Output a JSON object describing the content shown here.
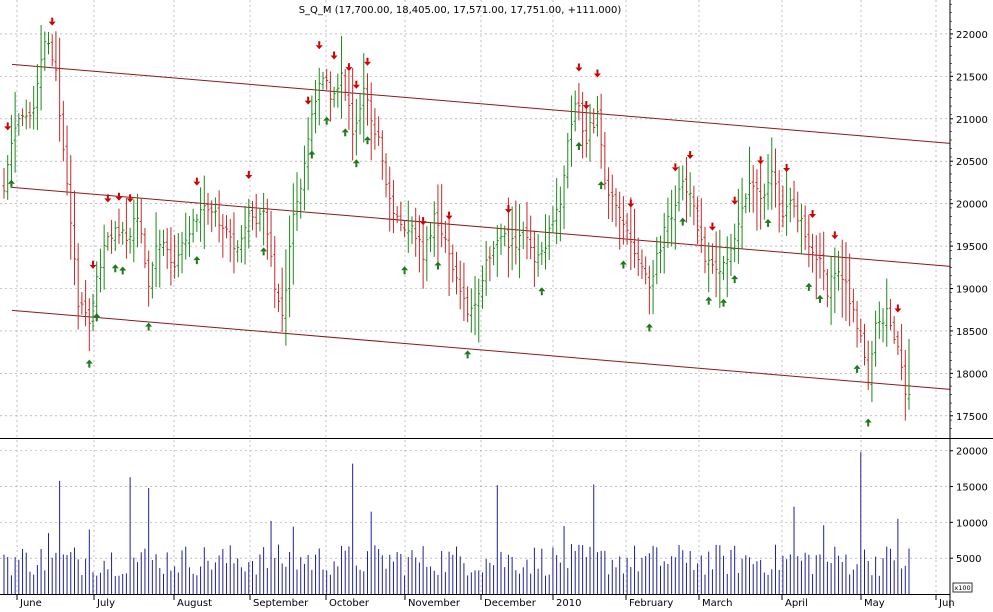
{
  "header": {
    "title": "S_Q_M (17,700.00, 18,405.00, 17,571.00, 17,751.00, +111.000)"
  },
  "volume_scale_label": "x100",
  "colors": {
    "up_bar": "#1a8a1a",
    "down_bar": "#c62828",
    "channel_line": "#8b1a1a",
    "volume_bar": "#1f1f9a",
    "grid": "#9a9a9a",
    "up_arrow": "#1a7a1a",
    "down_arrow": "#d10000"
  },
  "chart_data": [
    {
      "type": "ohlc",
      "title": "S_Q_M (17,700.00, 18,405.00, 17,571.00, 17,751.00, +111.000)",
      "last_bar": {
        "open": 17700,
        "high": 18405,
        "low": 17571,
        "close": 17751,
        "change": 111
      },
      "ylim": [
        17250,
        22400
      ],
      "y_ticks": [
        17500,
        18000,
        18500,
        19000,
        19500,
        20000,
        20500,
        21000,
        21500,
        22000
      ],
      "x_tick_labels": [
        "June",
        "July",
        "August",
        "September",
        "October",
        "November",
        "December",
        "2010",
        "February",
        "March",
        "April",
        "May",
        "Jun"
      ],
      "grid": true,
      "close_path": [
        {
          "bar": 0,
          "close": 20150
        },
        {
          "bar": 3,
          "close": 20900
        },
        {
          "bar": 8,
          "close": 21100
        },
        {
          "bar": 11,
          "close": 21950
        },
        {
          "bar": 14,
          "close": 21500
        },
        {
          "bar": 17,
          "close": 20250
        },
        {
          "bar": 20,
          "close": 18800
        },
        {
          "bar": 23,
          "close": 18650
        },
        {
          "bar": 26,
          "close": 19300
        },
        {
          "bar": 30,
          "close": 19800
        },
        {
          "bar": 33,
          "close": 19500
        },
        {
          "bar": 36,
          "close": 19900
        },
        {
          "bar": 39,
          "close": 19100
        },
        {
          "bar": 42,
          "close": 19600
        },
        {
          "bar": 46,
          "close": 19300
        },
        {
          "bar": 50,
          "close": 19700
        },
        {
          "bar": 54,
          "close": 19900
        },
        {
          "bar": 58,
          "close": 19800
        },
        {
          "bar": 62,
          "close": 19500
        },
        {
          "bar": 66,
          "close": 19800
        },
        {
          "bar": 70,
          "close": 19900
        },
        {
          "bar": 73,
          "close": 19000
        },
        {
          "bar": 75,
          "close": 18700
        },
        {
          "bar": 78,
          "close": 19800
        },
        {
          "bar": 82,
          "close": 20700
        },
        {
          "bar": 85,
          "close": 21500
        },
        {
          "bar": 88,
          "close": 21300
        },
        {
          "bar": 91,
          "close": 21450
        },
        {
          "bar": 94,
          "close": 20900
        },
        {
          "bar": 97,
          "close": 21300
        },
        {
          "bar": 101,
          "close": 20700
        },
        {
          "bar": 104,
          "close": 20100
        },
        {
          "bar": 107,
          "close": 19700
        },
        {
          "bar": 110,
          "close": 19800
        },
        {
          "bar": 113,
          "close": 19400
        },
        {
          "bar": 116,
          "close": 19800
        },
        {
          "bar": 119,
          "close": 19500
        },
        {
          "bar": 122,
          "close": 19100
        },
        {
          "bar": 125,
          "close": 18700
        },
        {
          "bar": 128,
          "close": 19000
        },
        {
          "bar": 131,
          "close": 19400
        },
        {
          "bar": 134,
          "close": 19700
        },
        {
          "bar": 137,
          "close": 19500
        },
        {
          "bar": 140,
          "close": 19700
        },
        {
          "bar": 143,
          "close": 19400
        },
        {
          "bar": 146,
          "close": 19500
        },
        {
          "bar": 150,
          "close": 20000
        },
        {
          "bar": 152,
          "close": 20800
        },
        {
          "bar": 154,
          "close": 21200
        },
        {
          "bar": 157,
          "close": 20800
        },
        {
          "bar": 160,
          "close": 21000
        },
        {
          "bar": 162,
          "close": 20300
        },
        {
          "bar": 165,
          "close": 19900
        },
        {
          "bar": 168,
          "close": 19700
        },
        {
          "bar": 171,
          "close": 19300
        },
        {
          "bar": 174,
          "close": 19000
        },
        {
          "bar": 177,
          "close": 19500
        },
        {
          "bar": 180,
          "close": 19900
        },
        {
          "bar": 183,
          "close": 20300
        },
        {
          "bar": 186,
          "close": 19900
        },
        {
          "bar": 189,
          "close": 19300
        },
        {
          "bar": 192,
          "close": 19200
        },
        {
          "bar": 195,
          "close": 19400
        },
        {
          "bar": 198,
          "close": 19800
        },
        {
          "bar": 201,
          "close": 20300
        },
        {
          "bar": 204,
          "close": 20000
        },
        {
          "bar": 207,
          "close": 20300
        },
        {
          "bar": 210,
          "close": 19900
        },
        {
          "bar": 213,
          "close": 20000
        },
        {
          "bar": 216,
          "close": 19600
        },
        {
          "bar": 219,
          "close": 19400
        },
        {
          "bar": 222,
          "close": 19000
        },
        {
          "bar": 225,
          "close": 19200
        },
        {
          "bar": 228,
          "close": 18900
        },
        {
          "bar": 231,
          "close": 18400
        },
        {
          "bar": 233,
          "close": 17900
        },
        {
          "bar": 235,
          "close": 18600
        },
        {
          "bar": 238,
          "close": 18700
        },
        {
          "bar": 241,
          "close": 18300
        },
        {
          "bar": 243,
          "close": 17751
        }
      ],
      "channel_lines": [
        {
          "name": "upper",
          "start": {
            "bar": 0,
            "value": 21650
          },
          "end": {
            "bar": 258,
            "value": 20700
          }
        },
        {
          "name": "middle",
          "start": {
            "bar": 0,
            "value": 20200
          },
          "end": {
            "bar": 258,
            "value": 19250
          }
        },
        {
          "name": "lower",
          "start": {
            "bar": 0,
            "value": 18750
          },
          "end": {
            "bar": 258,
            "value": 17800
          }
        }
      ],
      "signals": {
        "up_arrow_bars": [
          2,
          23,
          25,
          30,
          32,
          39,
          52,
          70,
          83,
          87,
          92,
          95,
          98,
          108,
          117,
          125,
          145,
          155,
          161,
          167,
          174,
          183,
          190,
          194,
          197,
          206,
          217,
          220,
          230,
          233
        ],
        "down_arrow_bars": [
          1,
          13,
          24,
          28,
          31,
          34,
          52,
          66,
          82,
          85,
          89,
          93,
          95,
          98,
          113,
          120,
          136,
          155,
          157,
          160,
          169,
          181,
          185,
          191,
          197,
          204,
          211,
          218,
          224,
          241
        ]
      },
      "total_bars": 245
    },
    {
      "type": "bar",
      "title": "",
      "ylim": [
        0,
        21500
      ],
      "y_ticks": [
        5000,
        10000,
        15000,
        20000
      ],
      "peak_volumes": [
        {
          "bar": 0,
          "value": 5500
        },
        {
          "bar": 12,
          "value": 8500
        },
        {
          "bar": 15,
          "value": 15800
        },
        {
          "bar": 23,
          "value": 9000
        },
        {
          "bar": 34,
          "value": 16300
        },
        {
          "bar": 39,
          "value": 14800
        },
        {
          "bar": 72,
          "value": 10200
        },
        {
          "bar": 78,
          "value": 9400
        },
        {
          "bar": 94,
          "value": 18200
        },
        {
          "bar": 99,
          "value": 11500
        },
        {
          "bar": 133,
          "value": 15200
        },
        {
          "bar": 151,
          "value": 9500
        },
        {
          "bar": 159,
          "value": 15300
        },
        {
          "bar": 185,
          "value": 6000
        },
        {
          "bar": 213,
          "value": 12200
        },
        {
          "bar": 221,
          "value": 9600
        },
        {
          "bar": 231,
          "value": 19800
        },
        {
          "bar": 241,
          "value": 10500
        }
      ],
      "base_volume": 2500
    }
  ]
}
